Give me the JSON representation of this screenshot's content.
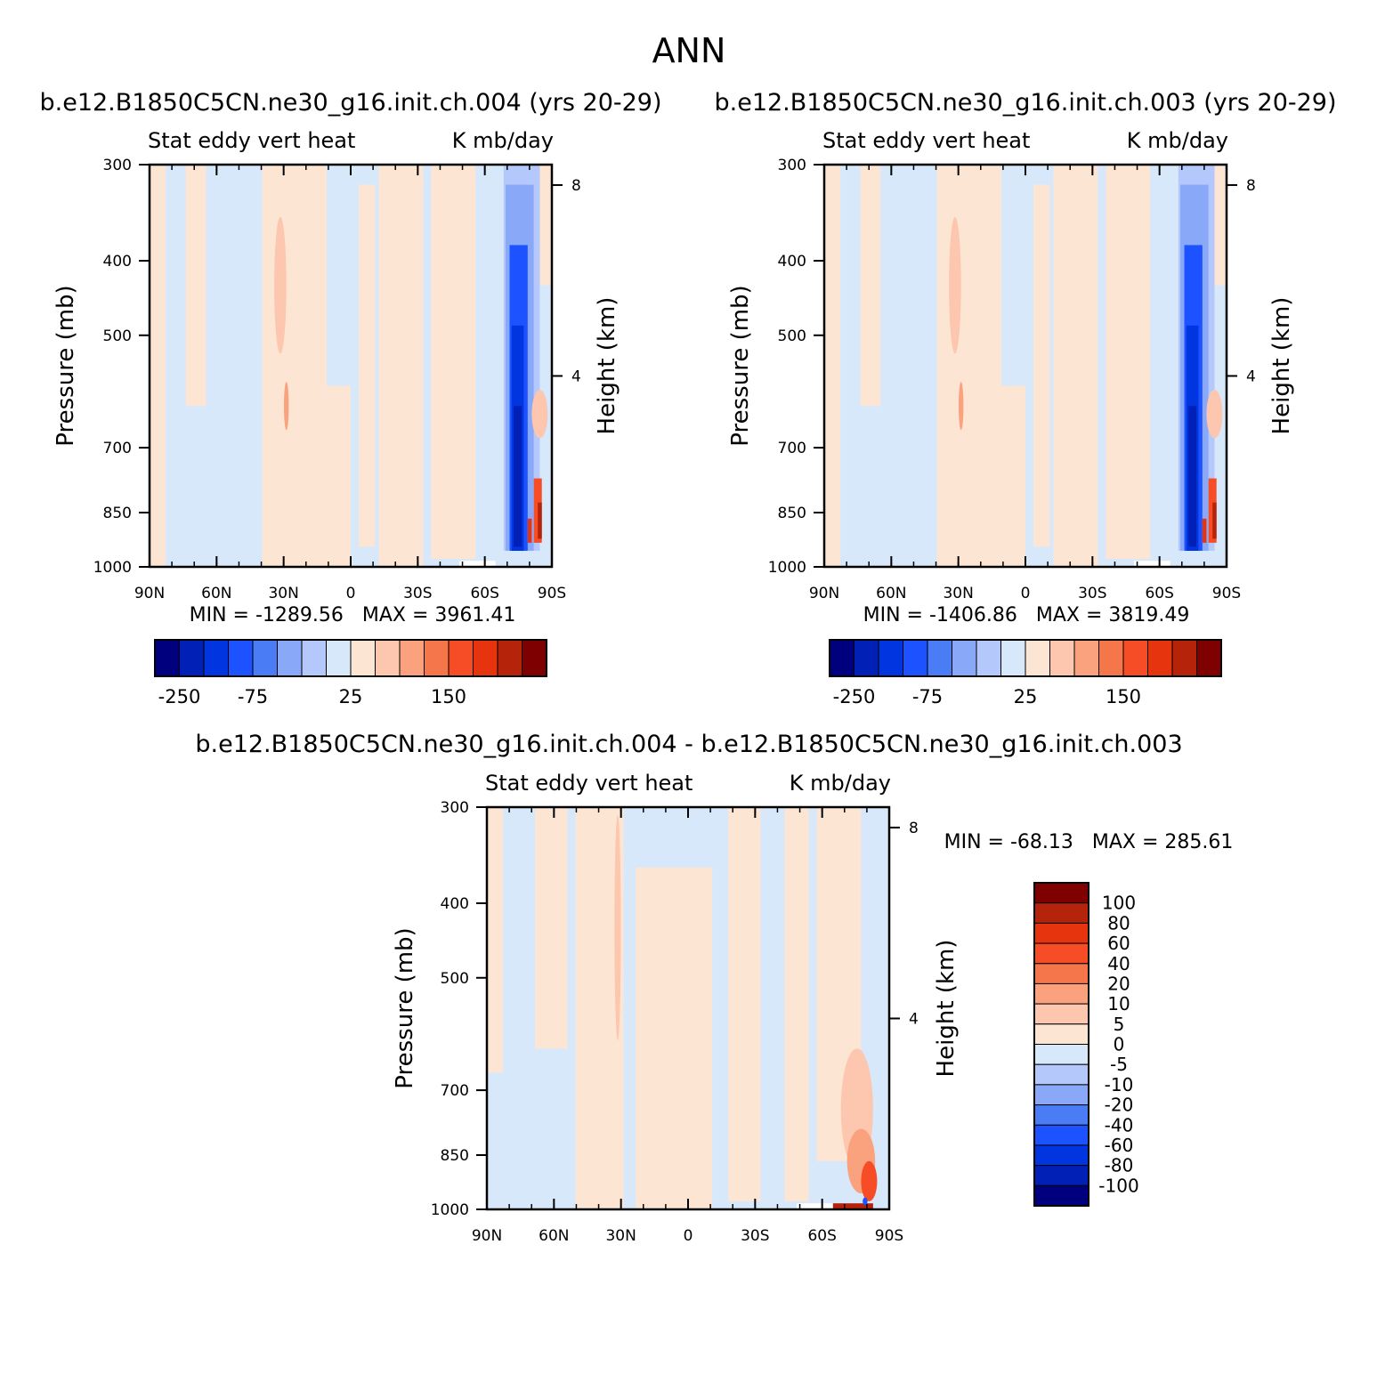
{
  "figure": {
    "title": "ANN"
  },
  "colors": {
    "abs_palette": [
      "#00007f",
      "#0020b6",
      "#0035e0",
      "#1c52ff",
      "#4a7cf5",
      "#89a8f8",
      "#b4c8fb",
      "#d8e8fb",
      "#fde5d4",
      "#fcc7ae",
      "#f9a27d",
      "#f5764a",
      "#f64d26",
      "#e5340e",
      "#b5230a",
      "#7f0000"
    ],
    "diff_palette": [
      "#00007f",
      "#0020b6",
      "#0035e0",
      "#1c52ff",
      "#4a7cf5",
      "#89a8f8",
      "#b4c8fb",
      "#d8e8fb",
      "#fde5d4",
      "#fcc7ae",
      "#f9a27d",
      "#f5764a",
      "#f64d26",
      "#e5340e",
      "#b5230a",
      "#7f0000"
    ]
  },
  "chart_data": [
    {
      "type": "heatmap",
      "title": "b.e12.B1850C5CN.ne30_g16.init.ch.004 (yrs 20-29)",
      "variable": "Stat eddy vert heat",
      "units": "K mb/day",
      "xlabel": "",
      "ylabel": "Pressure (mb)",
      "ylabel_right": "Height (km)",
      "x_ticks": [
        "90N",
        "60N",
        "30N",
        "0",
        "30S",
        "60S",
        "90S"
      ],
      "y_ticks": [
        "300",
        "400",
        "500",
        "700",
        "850",
        "1000"
      ],
      "y_ticks_right": [
        "8",
        "4"
      ],
      "xlim": [
        "90N",
        "90S"
      ],
      "ylim": [
        1000,
        300
      ],
      "stats_text": "MIN = -1289.56   MAX = 3961.41",
      "min": -1289.56,
      "max": 3961.41,
      "colorbar": {
        "orientation": "horizontal",
        "labels": [
          "-250",
          "-75",
          "25",
          "150"
        ]
      },
      "grid": false
    },
    {
      "type": "heatmap",
      "title": "b.e12.B1850C5CN.ne30_g16.init.ch.003 (yrs 20-29)",
      "variable": "Stat eddy vert heat",
      "units": "K mb/day",
      "xlabel": "",
      "ylabel": "Pressure (mb)",
      "ylabel_right": "Height (km)",
      "x_ticks": [
        "90N",
        "60N",
        "30N",
        "0",
        "30S",
        "60S",
        "90S"
      ],
      "y_ticks": [
        "300",
        "400",
        "500",
        "700",
        "850",
        "1000"
      ],
      "y_ticks_right": [
        "8",
        "4"
      ],
      "xlim": [
        "90N",
        "90S"
      ],
      "ylim": [
        1000,
        300
      ],
      "stats_text": "MIN = -1406.86   MAX = 3819.49",
      "min": -1406.86,
      "max": 3819.49,
      "colorbar": {
        "orientation": "horizontal",
        "labels": [
          "-250",
          "-75",
          "25",
          "150"
        ]
      },
      "grid": false
    },
    {
      "type": "heatmap",
      "title": "b.e12.B1850C5CN.ne30_g16.init.ch.004 - b.e12.B1850C5CN.ne30_g16.init.ch.003",
      "variable": "Stat eddy vert heat",
      "units": "K mb/day",
      "xlabel": "",
      "ylabel": "Pressure (mb)",
      "ylabel_right": "Height (km)",
      "x_ticks": [
        "90N",
        "60N",
        "30N",
        "0",
        "30S",
        "60S",
        "90S"
      ],
      "y_ticks": [
        "300",
        "400",
        "500",
        "700",
        "850",
        "1000"
      ],
      "y_ticks_right": [
        "8",
        "4"
      ],
      "xlim": [
        "90N",
        "90S"
      ],
      "ylim": [
        1000,
        300
      ],
      "stats_text": "MIN = -68.13   MAX = 285.61",
      "min": -68.13,
      "max": 285.61,
      "colorbar": {
        "orientation": "vertical",
        "labels": [
          "100",
          "80",
          "60",
          "40",
          "20",
          "10",
          "5",
          "0",
          "-5",
          "-10",
          "-20",
          "-40",
          "-60",
          "-80",
          "-100"
        ]
      },
      "grid": false
    }
  ]
}
